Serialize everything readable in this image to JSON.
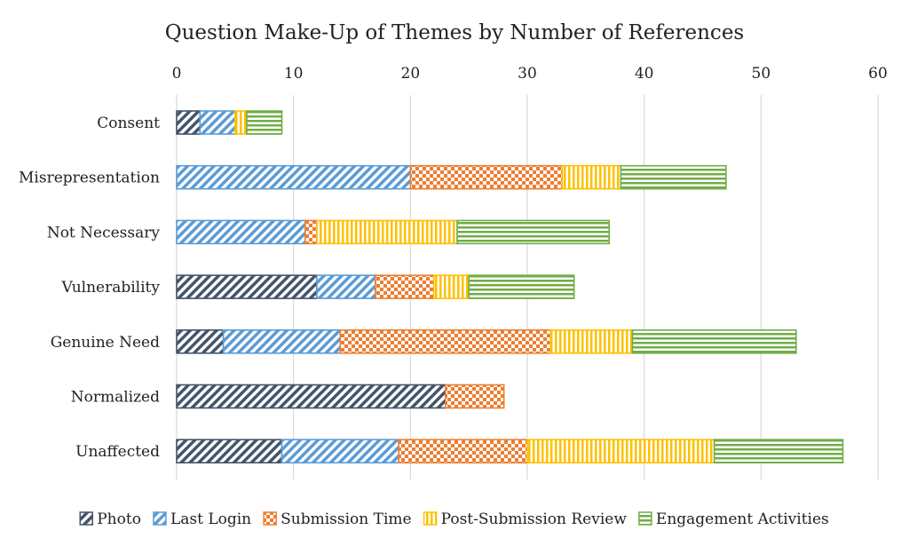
{
  "chart_data": {
    "type": "bar",
    "orientation": "horizontal",
    "stacked": true,
    "title": "Question Make-Up of Themes by Number of References",
    "xlabel": "",
    "ylabel": "",
    "xlim": [
      0,
      60
    ],
    "x_ticks": [
      0,
      10,
      20,
      30,
      40,
      50,
      60
    ],
    "x_axis_position": "top",
    "grid": true,
    "legend_position": "bottom",
    "categories": [
      "Consent",
      "Misrepresentation",
      "Not Necessary",
      "Vulnerability",
      "Genuine Need",
      "Normalized",
      "Unaffected"
    ],
    "series": [
      {
        "name": "Photo",
        "color": "#44546A",
        "pattern": "diagonal-stripes",
        "values": [
          2,
          0,
          0,
          12,
          4,
          23,
          9
        ]
      },
      {
        "name": "Last Login",
        "color": "#5B9BD5",
        "pattern": "diagonal-stripes",
        "values": [
          3,
          20,
          11,
          5,
          10,
          0,
          10
        ]
      },
      {
        "name": "Submission Time",
        "color": "#ED7D31",
        "pattern": "checkerboard",
        "values": [
          0,
          13,
          1,
          5,
          18,
          5,
          11
        ]
      },
      {
        "name": "Post-Submission Review",
        "color": "#FFC000",
        "pattern": "vertical-stripes",
        "values": [
          1,
          5,
          12,
          3,
          7,
          0,
          16
        ]
      },
      {
        "name": "Engagement Activities",
        "color": "#70AD47",
        "pattern": "horizontal-stripes",
        "values": [
          3,
          9,
          13,
          9,
          14,
          0,
          11
        ]
      }
    ]
  }
}
